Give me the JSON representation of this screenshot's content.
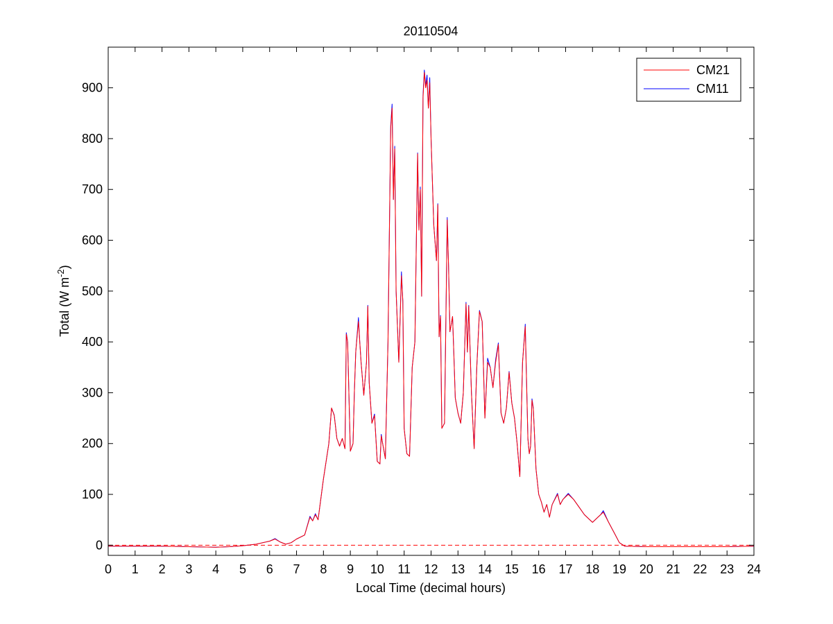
{
  "chart_data": {
    "type": "line",
    "title": "20110504",
    "xlabel": "Local Time (decimal hours)",
    "ylabel_main": "Total (W m",
    "ylabel_sup": "-2",
    "ylabel_close": ")",
    "xlim": [
      0,
      24
    ],
    "ylim": [
      -20,
      980
    ],
    "xticks": [
      0,
      1,
      2,
      3,
      4,
      5,
      6,
      7,
      8,
      9,
      10,
      11,
      12,
      13,
      14,
      15,
      16,
      17,
      18,
      19,
      20,
      21,
      22,
      23,
      24
    ],
    "yticks": [
      0,
      100,
      200,
      300,
      400,
      500,
      600,
      700,
      800,
      900
    ],
    "grid": false,
    "legend_position": "top-right",
    "zero_line": {
      "y": 0,
      "style": "dashed",
      "color": "#ff0000"
    },
    "series": [
      {
        "name": "CM21",
        "color": "#ff0000",
        "points": [
          [
            0,
            -2
          ],
          [
            1,
            -2
          ],
          [
            2,
            -2
          ],
          [
            3,
            -3
          ],
          [
            4,
            -4
          ],
          [
            4.5,
            -3
          ],
          [
            5,
            -1
          ],
          [
            5.5,
            2
          ],
          [
            6,
            8
          ],
          [
            6.2,
            12
          ],
          [
            6.4,
            6
          ],
          [
            6.6,
            2
          ],
          [
            6.8,
            5
          ],
          [
            7,
            12
          ],
          [
            7.3,
            20
          ],
          [
            7.5,
            55
          ],
          [
            7.6,
            48
          ],
          [
            7.7,
            60
          ],
          [
            7.8,
            50
          ],
          [
            8,
            130
          ],
          [
            8.2,
            200
          ],
          [
            8.3,
            270
          ],
          [
            8.4,
            255
          ],
          [
            8.5,
            210
          ],
          [
            8.6,
            195
          ],
          [
            8.7,
            210
          ],
          [
            8.8,
            190
          ],
          [
            8.85,
            415
          ],
          [
            8.9,
            400
          ],
          [
            9,
            185
          ],
          [
            9.1,
            200
          ],
          [
            9.15,
            300
          ],
          [
            9.2,
            380
          ],
          [
            9.3,
            440
          ],
          [
            9.35,
            400
          ],
          [
            9.4,
            360
          ],
          [
            9.5,
            295
          ],
          [
            9.6,
            360
          ],
          [
            9.65,
            470
          ],
          [
            9.7,
            320
          ],
          [
            9.8,
            240
          ],
          [
            9.9,
            255
          ],
          [
            10,
            165
          ],
          [
            10.1,
            160
          ],
          [
            10.15,
            215
          ],
          [
            10.2,
            200
          ],
          [
            10.3,
            170
          ],
          [
            10.4,
            400
          ],
          [
            10.5,
            820
          ],
          [
            10.55,
            860
          ],
          [
            10.6,
            680
          ],
          [
            10.65,
            780
          ],
          [
            10.7,
            500
          ],
          [
            10.8,
            360
          ],
          [
            10.9,
            530
          ],
          [
            10.95,
            480
          ],
          [
            11,
            230
          ],
          [
            11.1,
            180
          ],
          [
            11.2,
            175
          ],
          [
            11.3,
            350
          ],
          [
            11.4,
            400
          ],
          [
            11.5,
            770
          ],
          [
            11.55,
            620
          ],
          [
            11.6,
            700
          ],
          [
            11.65,
            490
          ],
          [
            11.7,
            880
          ],
          [
            11.75,
            930
          ],
          [
            11.8,
            900
          ],
          [
            11.85,
            915
          ],
          [
            11.9,
            860
          ],
          [
            11.95,
            910
          ],
          [
            12,
            800
          ],
          [
            12.1,
            630
          ],
          [
            12.2,
            560
          ],
          [
            12.25,
            670
          ],
          [
            12.3,
            410
          ],
          [
            12.35,
            450
          ],
          [
            12.4,
            230
          ],
          [
            12.5,
            240
          ],
          [
            12.6,
            640
          ],
          [
            12.65,
            550
          ],
          [
            12.7,
            420
          ],
          [
            12.8,
            450
          ],
          [
            12.85,
            370
          ],
          [
            12.9,
            290
          ],
          [
            13,
            260
          ],
          [
            13.1,
            240
          ],
          [
            13.2,
            300
          ],
          [
            13.3,
            475
          ],
          [
            13.35,
            380
          ],
          [
            13.4,
            470
          ],
          [
            13.5,
            300
          ],
          [
            13.6,
            190
          ],
          [
            13.7,
            350
          ],
          [
            13.8,
            460
          ],
          [
            13.9,
            440
          ],
          [
            14,
            250
          ],
          [
            14.1,
            360
          ],
          [
            14.2,
            350
          ],
          [
            14.3,
            310
          ],
          [
            14.4,
            360
          ],
          [
            14.5,
            395
          ],
          [
            14.6,
            260
          ],
          [
            14.7,
            240
          ],
          [
            14.8,
            270
          ],
          [
            14.9,
            340
          ],
          [
            15,
            280
          ],
          [
            15.1,
            250
          ],
          [
            15.2,
            200
          ],
          [
            15.3,
            135
          ],
          [
            15.4,
            360
          ],
          [
            15.5,
            430
          ],
          [
            15.6,
            210
          ],
          [
            15.65,
            180
          ],
          [
            15.7,
            195
          ],
          [
            15.75,
            285
          ],
          [
            15.8,
            270
          ],
          [
            15.9,
            150
          ],
          [
            16,
            100
          ],
          [
            16.1,
            85
          ],
          [
            16.2,
            65
          ],
          [
            16.3,
            80
          ],
          [
            16.4,
            55
          ],
          [
            16.5,
            80
          ],
          [
            16.7,
            100
          ],
          [
            16.8,
            80
          ],
          [
            16.9,
            90
          ],
          [
            17.1,
            100
          ],
          [
            17.3,
            90
          ],
          [
            17.5,
            75
          ],
          [
            17.7,
            60
          ],
          [
            17.9,
            50
          ],
          [
            18,
            45
          ],
          [
            18.2,
            55
          ],
          [
            18.3,
            60
          ],
          [
            18.4,
            65
          ],
          [
            18.6,
            45
          ],
          [
            18.8,
            25
          ],
          [
            19,
            5
          ],
          [
            19.2,
            -2
          ],
          [
            20,
            -3
          ],
          [
            21,
            -3
          ],
          [
            22,
            -3
          ],
          [
            23,
            -3
          ],
          [
            24,
            -2
          ]
        ]
      },
      {
        "name": "CM11",
        "color": "#0000ff",
        "points": [
          [
            0,
            -2
          ],
          [
            1,
            -2
          ],
          [
            2,
            -2
          ],
          [
            3,
            -3
          ],
          [
            4,
            -4
          ],
          [
            4.5,
            -3
          ],
          [
            5,
            -1
          ],
          [
            5.5,
            2
          ],
          [
            6,
            8
          ],
          [
            6.2,
            13
          ],
          [
            6.4,
            6
          ],
          [
            6.6,
            2
          ],
          [
            6.8,
            5
          ],
          [
            7,
            12
          ],
          [
            7.3,
            20
          ],
          [
            7.5,
            57
          ],
          [
            7.6,
            48
          ],
          [
            7.7,
            62
          ],
          [
            7.8,
            50
          ],
          [
            8,
            130
          ],
          [
            8.2,
            200
          ],
          [
            8.3,
            270
          ],
          [
            8.4,
            256
          ],
          [
            8.5,
            210
          ],
          [
            8.6,
            195
          ],
          [
            8.7,
            210
          ],
          [
            8.8,
            190
          ],
          [
            8.85,
            418
          ],
          [
            8.9,
            400
          ],
          [
            9,
            185
          ],
          [
            9.1,
            200
          ],
          [
            9.15,
            300
          ],
          [
            9.2,
            380
          ],
          [
            9.3,
            448
          ],
          [
            9.35,
            400
          ],
          [
            9.4,
            360
          ],
          [
            9.5,
            295
          ],
          [
            9.6,
            360
          ],
          [
            9.65,
            472
          ],
          [
            9.7,
            320
          ],
          [
            9.8,
            240
          ],
          [
            9.9,
            258
          ],
          [
            10,
            165
          ],
          [
            10.1,
            160
          ],
          [
            10.15,
            218
          ],
          [
            10.2,
            200
          ],
          [
            10.3,
            170
          ],
          [
            10.4,
            400
          ],
          [
            10.5,
            825
          ],
          [
            10.55,
            868
          ],
          [
            10.6,
            680
          ],
          [
            10.65,
            785
          ],
          [
            10.7,
            500
          ],
          [
            10.8,
            360
          ],
          [
            10.9,
            538
          ],
          [
            10.95,
            480
          ],
          [
            11,
            230
          ],
          [
            11.1,
            180
          ],
          [
            11.2,
            175
          ],
          [
            11.3,
            350
          ],
          [
            11.4,
            400
          ],
          [
            11.5,
            772
          ],
          [
            11.55,
            620
          ],
          [
            11.6,
            705
          ],
          [
            11.65,
            490
          ],
          [
            11.7,
            885
          ],
          [
            11.75,
            935
          ],
          [
            11.8,
            905
          ],
          [
            11.85,
            925
          ],
          [
            11.9,
            860
          ],
          [
            11.95,
            920
          ],
          [
            12,
            800
          ],
          [
            12.1,
            630
          ],
          [
            12.2,
            560
          ],
          [
            12.25,
            672
          ],
          [
            12.3,
            410
          ],
          [
            12.35,
            452
          ],
          [
            12.4,
            230
          ],
          [
            12.5,
            240
          ],
          [
            12.6,
            645
          ],
          [
            12.65,
            550
          ],
          [
            12.7,
            420
          ],
          [
            12.8,
            450
          ],
          [
            12.85,
            370
          ],
          [
            12.9,
            290
          ],
          [
            13,
            260
          ],
          [
            13.1,
            240
          ],
          [
            13.2,
            300
          ],
          [
            13.3,
            478
          ],
          [
            13.35,
            380
          ],
          [
            13.4,
            472
          ],
          [
            13.5,
            300
          ],
          [
            13.6,
            190
          ],
          [
            13.7,
            350
          ],
          [
            13.8,
            462
          ],
          [
            13.9,
            440
          ],
          [
            14,
            250
          ],
          [
            14.1,
            368
          ],
          [
            14.2,
            350
          ],
          [
            14.3,
            310
          ],
          [
            14.4,
            365
          ],
          [
            14.5,
            398
          ],
          [
            14.6,
            260
          ],
          [
            14.7,
            240
          ],
          [
            14.8,
            270
          ],
          [
            14.9,
            342
          ],
          [
            15,
            280
          ],
          [
            15.1,
            250
          ],
          [
            15.2,
            200
          ],
          [
            15.3,
            135
          ],
          [
            15.4,
            360
          ],
          [
            15.5,
            435
          ],
          [
            15.6,
            210
          ],
          [
            15.65,
            180
          ],
          [
            15.7,
            195
          ],
          [
            15.75,
            288
          ],
          [
            15.8,
            270
          ],
          [
            15.9,
            150
          ],
          [
            16,
            100
          ],
          [
            16.1,
            85
          ],
          [
            16.2,
            65
          ],
          [
            16.3,
            80
          ],
          [
            16.4,
            55
          ],
          [
            16.5,
            80
          ],
          [
            16.7,
            102
          ],
          [
            16.8,
            80
          ],
          [
            16.9,
            90
          ],
          [
            17.1,
            102
          ],
          [
            17.3,
            90
          ],
          [
            17.5,
            75
          ],
          [
            17.7,
            60
          ],
          [
            17.9,
            50
          ],
          [
            18,
            45
          ],
          [
            18.2,
            55
          ],
          [
            18.3,
            60
          ],
          [
            18.4,
            68
          ],
          [
            18.6,
            45
          ],
          [
            18.8,
            25
          ],
          [
            19,
            5
          ],
          [
            19.2,
            -2
          ],
          [
            20,
            -3
          ],
          [
            21,
            -3
          ],
          [
            22,
            -3
          ],
          [
            23,
            -3
          ],
          [
            24,
            -2
          ]
        ]
      }
    ]
  }
}
